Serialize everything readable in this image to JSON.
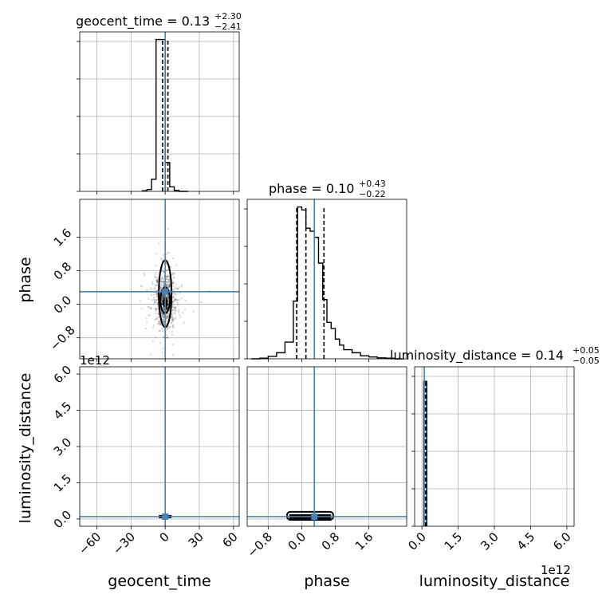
{
  "chart_data": [
    {
      "type": "histogram",
      "name": "geocent_time",
      "title": "geocent_time = 0.13",
      "title_sup": "+2.30",
      "title_sub": "−2.41",
      "xlim": [
        -75,
        65
      ],
      "xticks": [
        -60,
        -30,
        0,
        30,
        60
      ],
      "xtick_labels": [
        "−60",
        "−30",
        "0",
        "30",
        "60"
      ],
      "xlabel": "geocent_time",
      "bins": [
        -20,
        -16,
        -12,
        -8,
        -4,
        0,
        4,
        8,
        12,
        16,
        20
      ],
      "counts": [
        0.004,
        0.012,
        0.08,
        1.0,
        1.0,
        0.19,
        0.03,
        0.006,
        0.0,
        0.0
      ],
      "ymax": 1.05,
      "quantiles": [
        -2.28,
        0.13,
        2.43
      ],
      "truth": 0.0,
      "grid": true
    },
    {
      "type": "histogram",
      "name": "phase",
      "title": "phase = 0.10",
      "title_sup": "+0.43",
      "title_sub": "−0.22",
      "xlim": [
        -1.3,
        2.5
      ],
      "xticks": [
        -0.8,
        0.0,
        0.8,
        1.6
      ],
      "xtick_labels": [
        "−0.8",
        "0.0",
        "0.8",
        "1.6"
      ],
      "xlabel": "phase",
      "bins": [
        -1.2,
        -1.0,
        -0.8,
        -0.6,
        -0.4,
        -0.2,
        -0.1,
        0.0,
        0.1,
        0.2,
        0.3,
        0.4,
        0.5,
        0.6,
        0.7,
        0.8,
        0.9,
        1.0,
        1.2,
        1.4,
        1.6,
        1.8,
        2.0,
        2.2,
        2.4
      ],
      "counts": [
        0.0,
        0.004,
        0.016,
        0.04,
        0.11,
        0.38,
        1.0,
        0.98,
        0.86,
        0.84,
        0.8,
        0.63,
        0.39,
        0.24,
        0.2,
        0.13,
        0.09,
        0.06,
        0.04,
        0.02,
        0.012,
        0.006,
        0.004,
        0.0
      ],
      "ymax": 1.05,
      "quantiles": [
        -0.12,
        0.1,
        0.53
      ],
      "truth": 0.3,
      "grid": false
    },
    {
      "type": "histogram",
      "name": "luminosity_distance",
      "title": "luminosity_distance = 0.14",
      "title_sup": "+0.05",
      "title_sub": "−0.05",
      "xlim": [
        -0.3,
        6.3
      ],
      "xticks": [
        0.0,
        1.5,
        3.0,
        4.5,
        6.0
      ],
      "xtick_labels": [
        "0.0",
        "1.5",
        "3.0",
        "4.5",
        "6.0"
      ],
      "xlabel": "luminosity_distance",
      "x_offset": "1e12",
      "bins": [
        0.08,
        0.2
      ],
      "counts": [
        1.0
      ],
      "ymax": 1.1,
      "quantiles": [
        0.09,
        0.14,
        0.19
      ],
      "truth": 0.1,
      "grid": true
    },
    {
      "type": "scatter",
      "name": "phase vs geocent_time",
      "x": "geocent_time",
      "y": "phase",
      "ylim": [
        -1.3,
        2.5
      ],
      "yticks": [
        -0.8,
        0.0,
        0.8,
        1.6
      ],
      "ytick_labels": [
        "−0.8",
        "0.0",
        "0.8",
        "1.6"
      ],
      "ylabel": "phase",
      "truth": [
        0.0,
        0.3
      ],
      "grid": true
    },
    {
      "type": "scatter",
      "name": "luminosity_distance vs geocent_time",
      "x": "geocent_time",
      "y": "luminosity_distance",
      "ylim": [
        -0.3,
        6.3
      ],
      "yticks": [
        0.0,
        1.5,
        3.0,
        4.5,
        6.0
      ],
      "ytick_labels": [
        "0.0",
        "1.5",
        "3.0",
        "4.5",
        "6.0"
      ],
      "ylabel": "luminosity_distance",
      "y_offset": "1e12",
      "truth": [
        0.0,
        0.1
      ],
      "grid": true
    },
    {
      "type": "scatter",
      "name": "luminosity_distance vs phase",
      "x": "phase",
      "y": "luminosity_distance",
      "truth": [
        0.3,
        0.1
      ],
      "grid": true
    }
  ]
}
